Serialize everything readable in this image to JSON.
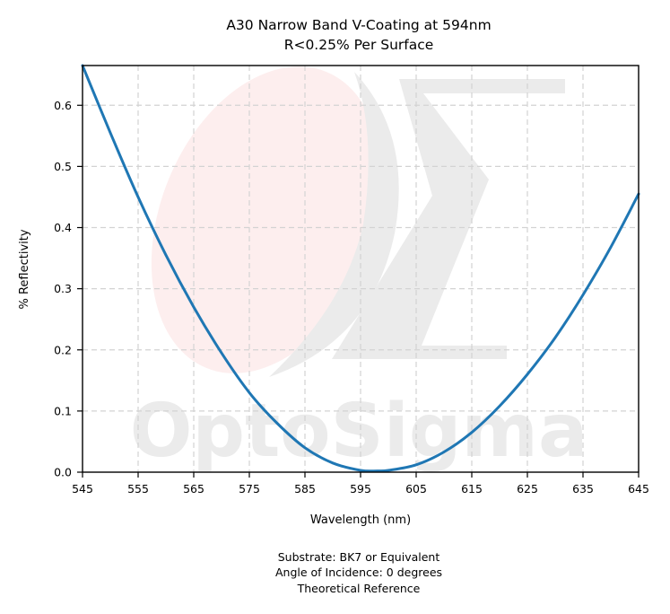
{
  "chart_data": {
    "type": "line",
    "title": "A30 Narrow Band V-Coating at 594nm",
    "subtitle": "R<0.25% Per Surface",
    "xlabel": "Wavelength (nm)",
    "ylabel": "% Reflectivity",
    "xlim": [
      545,
      645
    ],
    "ylim": [
      0,
      0.665
    ],
    "xticks": [
      545,
      555,
      565,
      575,
      585,
      595,
      605,
      615,
      625,
      635,
      645
    ],
    "yticks": [
      0.0,
      0.1,
      0.2,
      0.3,
      0.4,
      0.5,
      0.6
    ],
    "ytick_labels": [
      "0.0",
      "0.1",
      "0.2",
      "0.3",
      "0.4",
      "0.5",
      "0.6"
    ],
    "grid": true,
    "series": [
      {
        "color": "#1f77b4",
        "x": [
          545,
          550,
          555,
          560,
          565,
          570,
          575,
          580,
          585,
          590,
          595,
          598,
          600,
          605,
          610,
          615,
          620,
          625,
          630,
          635,
          640,
          645
        ],
        "y": [
          0.665,
          0.555,
          0.45,
          0.355,
          0.27,
          0.195,
          0.13,
          0.08,
          0.04,
          0.015,
          0.003,
          0.002,
          0.003,
          0.012,
          0.033,
          0.065,
          0.108,
          0.16,
          0.22,
          0.29,
          0.368,
          0.455
        ]
      }
    ],
    "watermark": "OptoSigma",
    "footnotes": [
      "Substrate: BK7 or Equivalent",
      "Angle of Incidence: 0 degrees",
      "Theoretical Reference"
    ]
  }
}
